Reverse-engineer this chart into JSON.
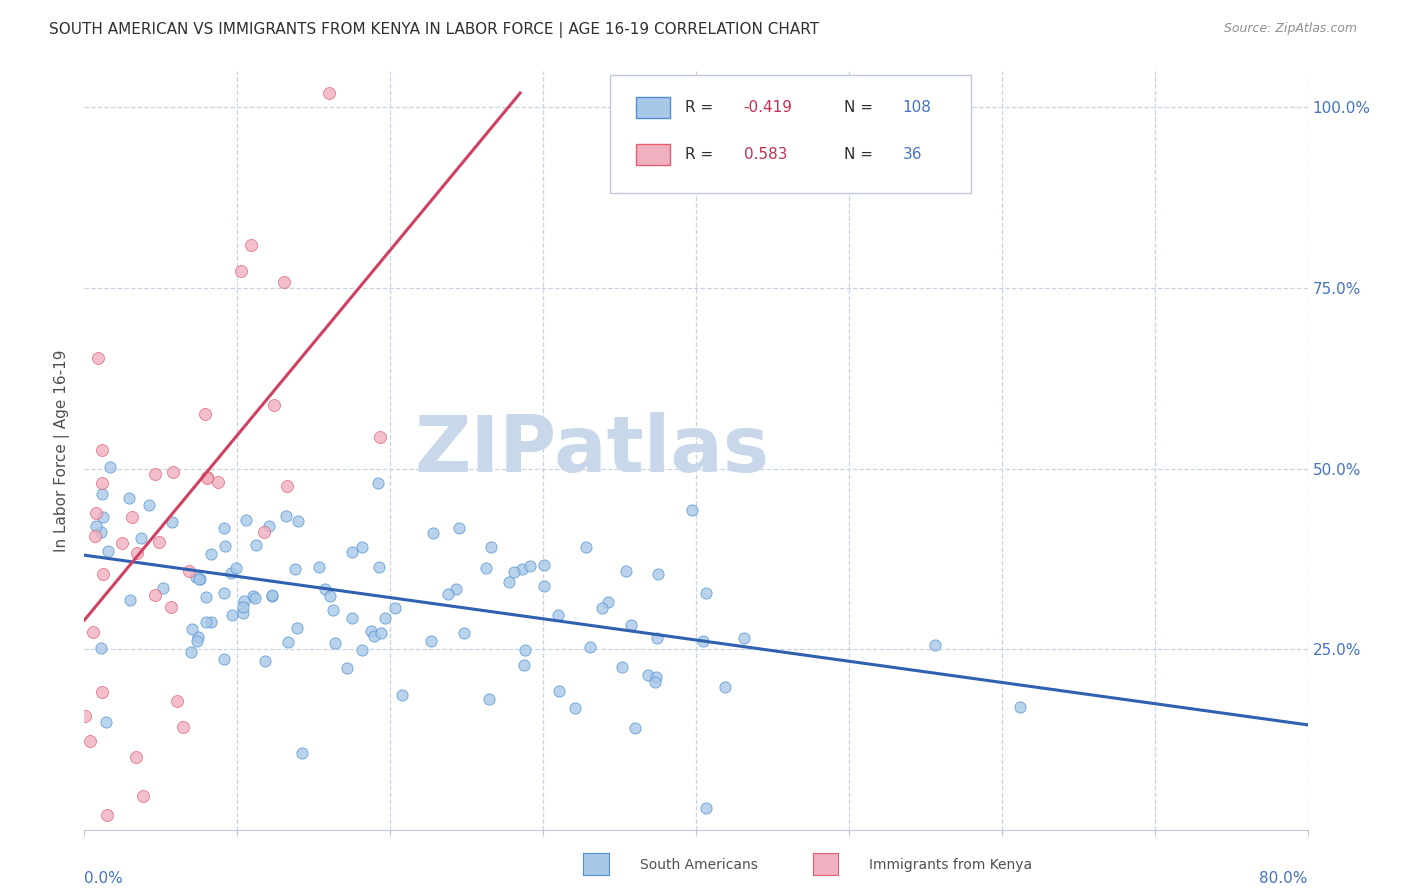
{
  "title": "SOUTH AMERICAN VS IMMIGRANTS FROM KENYA IN LABOR FORCE | AGE 16-19 CORRELATION CHART",
  "source": "Source: ZipAtlas.com",
  "ylabel": "In Labor Force | Age 16-19",
  "xmin": 0.0,
  "xmax": 0.8,
  "ymin": 0.0,
  "ymax": 1.05,
  "blue_R": -0.419,
  "blue_N": 108,
  "pink_R": 0.583,
  "pink_N": 36,
  "blue_color": "#a8c8e8",
  "pink_color": "#f0b0c0",
  "blue_edge_color": "#5090d0",
  "pink_edge_color": "#e06070",
  "blue_line_color": "#3060b0",
  "pink_line_color": "#d04060",
  "legend_R_color": "#c03050",
  "legend_N_color": "#4472c4",
  "title_color": "#303030",
  "source_color": "#909090",
  "axis_color": "#4472c4",
  "watermark": "ZIPatlas",
  "watermark_color": "#c8d8ea",
  "background_color": "#ffffff",
  "grid_color": "#c8d4e4",
  "blue_line_y0": 0.38,
  "blue_line_y1": 0.145,
  "pink_line_x0": 0.0,
  "pink_line_x1": 0.285,
  "pink_line_y0": 0.29,
  "pink_line_y1": 1.02,
  "seed": 7
}
